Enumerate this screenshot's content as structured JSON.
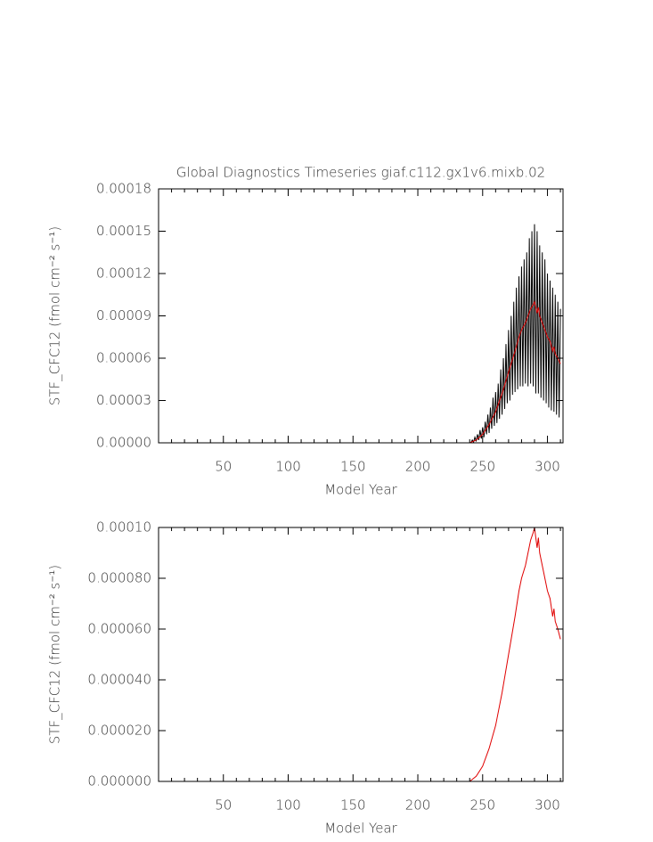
{
  "chart_data": [
    {
      "type": "line",
      "title": "Global Diagnostics Timeseries giaf.c112.gx1v6.mixb.02",
      "xlabel": "Model Year",
      "ylabel": "STF_CFC12 (fmol cm⁻² s⁻¹)",
      "xlim": [
        0,
        312
      ],
      "xticks": [
        50,
        100,
        150,
        200,
        250,
        300
      ],
      "xminorticks": [
        10,
        20,
        30,
        40,
        60,
        70,
        80,
        90,
        110,
        120,
        130,
        140,
        160,
        170,
        180,
        190,
        210,
        220,
        230,
        240,
        260,
        270,
        280,
        290,
        310
      ],
      "ylim": [
        0,
        0.00018
      ],
      "yticks": [
        {
          "value": 0,
          "label": "0.00000"
        },
        {
          "value": 3e-05,
          "label": "0.00003"
        },
        {
          "value": 6e-05,
          "label": "0.00006"
        },
        {
          "value": 9e-05,
          "label": "0.00009"
        },
        {
          "value": 0.00012,
          "label": "0.00012"
        },
        {
          "value": 0.00015,
          "label": "0.00015"
        },
        {
          "value": 0.00018,
          "label": "0.00018"
        }
      ],
      "series": [
        {
          "color": "#000000",
          "x": [
            1,
            240,
            241,
            242,
            243,
            244,
            245,
            246,
            247,
            248,
            249,
            250,
            251,
            252,
            253,
            254,
            255,
            256,
            257,
            258,
            259,
            260,
            261,
            262,
            263,
            264,
            265,
            266,
            267,
            268,
            269,
            270,
            271,
            272,
            273,
            274,
            275,
            276,
            277,
            278,
            279,
            280,
            281,
            282,
            283,
            284,
            285,
            286,
            287,
            288,
            289,
            290,
            291,
            292,
            293,
            294,
            295,
            296,
            297,
            298,
            299,
            300,
            301,
            302,
            303,
            304,
            305,
            306,
            307,
            308,
            309,
            310
          ],
          "values": [
            0,
            0,
            0,
            2e-06,
            5e-07,
            4e-06,
            1e-06,
            6e-06,
            2e-06,
            9e-06,
            3e-06,
            1.1e-05,
            4e-06,
            1.5e-05,
            6e-06,
            2e-05,
            7e-06,
            2.5e-05,
            1e-05,
            3.2e-05,
            1.2e-05,
            3.6e-05,
            1.4e-05,
            4.2e-05,
            1.7e-05,
            5.2e-05,
            2e-05,
            6e-05,
            2.4e-05,
            7e-05,
            2.8e-05,
            8e-05,
            3e-05,
            9e-05,
            3.4e-05,
            0.0001,
            3.6e-05,
            0.00011,
            3.8e-05,
            0.000118,
            4e-05,
            0.000125,
            4e-05,
            0.00013,
            4.2e-05,
            0.000135,
            4e-05,
            0.000145,
            4.2e-05,
            0.00015,
            4e-05,
            0.000155,
            3.5e-05,
            0.00015,
            3.5e-05,
            0.00014,
            3.2e-05,
            0.000135,
            3e-05,
            0.00013,
            2.8e-05,
            0.00012,
            2.5e-05,
            0.000115,
            2.3e-05,
            0.00011,
            2.2e-05,
            0.000105,
            2e-05,
            0.0001,
            1.8e-05,
            9.5e-05
          ]
        },
        {
          "color": "#e00000",
          "x": [
            1,
            240,
            245,
            250,
            255,
            260,
            265,
            270,
            275,
            278,
            280,
            283,
            285,
            287,
            289,
            290,
            291,
            292,
            293,
            294,
            296,
            298,
            300,
            302,
            304,
            305,
            306,
            308,
            310
          ],
          "values": [
            0,
            0,
            2e-06,
            6e-06,
            1.3e-05,
            2.2e-05,
            3.5e-05,
            5e-05,
            6.5e-05,
            7.5e-05,
            8e-05,
            8.5e-05,
            9e-05,
            9.5e-05,
            9.8e-05,
            0.0001,
            9.6e-05,
            9.2e-05,
            9.6e-05,
            9e-05,
            8.5e-05,
            8e-05,
            7.5e-05,
            7.2e-05,
            6.5e-05,
            6.8e-05,
            6.3e-05,
            6e-05,
            5.6e-05
          ]
        }
      ]
    },
    {
      "type": "line",
      "xlabel": "Model Year",
      "ylabel": "STF_CFC12 (fmol cm⁻² s⁻¹)",
      "xlim": [
        0,
        312
      ],
      "xticks": [
        50,
        100,
        150,
        200,
        250,
        300
      ],
      "xminorticks": [
        10,
        20,
        30,
        40,
        60,
        70,
        80,
        90,
        110,
        120,
        130,
        140,
        160,
        170,
        180,
        190,
        210,
        220,
        230,
        240,
        260,
        270,
        280,
        290,
        310
      ],
      "ylim": [
        0,
        0.0001
      ],
      "yticks": [
        {
          "value": 0,
          "label": "0.000000"
        },
        {
          "value": 2e-05,
          "label": "0.000020"
        },
        {
          "value": 4e-05,
          "label": "0.000040"
        },
        {
          "value": 6e-05,
          "label": "0.000060"
        },
        {
          "value": 8e-05,
          "label": "0.000080"
        },
        {
          "value": 0.0001,
          "label": "0.00010"
        }
      ],
      "series": [
        {
          "color": "#e00000",
          "x": [
            1,
            240,
            245,
            250,
            255,
            260,
            265,
            270,
            275,
            278,
            280,
            283,
            285,
            287,
            289,
            290,
            291,
            292,
            293,
            294,
            296,
            298,
            300,
            302,
            304,
            305,
            306,
            308,
            310
          ],
          "values": [
            0,
            0,
            2e-06,
            6e-06,
            1.3e-05,
            2.2e-05,
            3.5e-05,
            5e-05,
            6.5e-05,
            7.5e-05,
            8e-05,
            8.5e-05,
            9e-05,
            9.5e-05,
            9.8e-05,
            0.0001,
            9.6e-05,
            9.2e-05,
            9.6e-05,
            9e-05,
            8.5e-05,
            8e-05,
            7.5e-05,
            7.2e-05,
            6.5e-05,
            6.8e-05,
            6.3e-05,
            6e-05,
            5.6e-05
          ]
        }
      ]
    }
  ]
}
